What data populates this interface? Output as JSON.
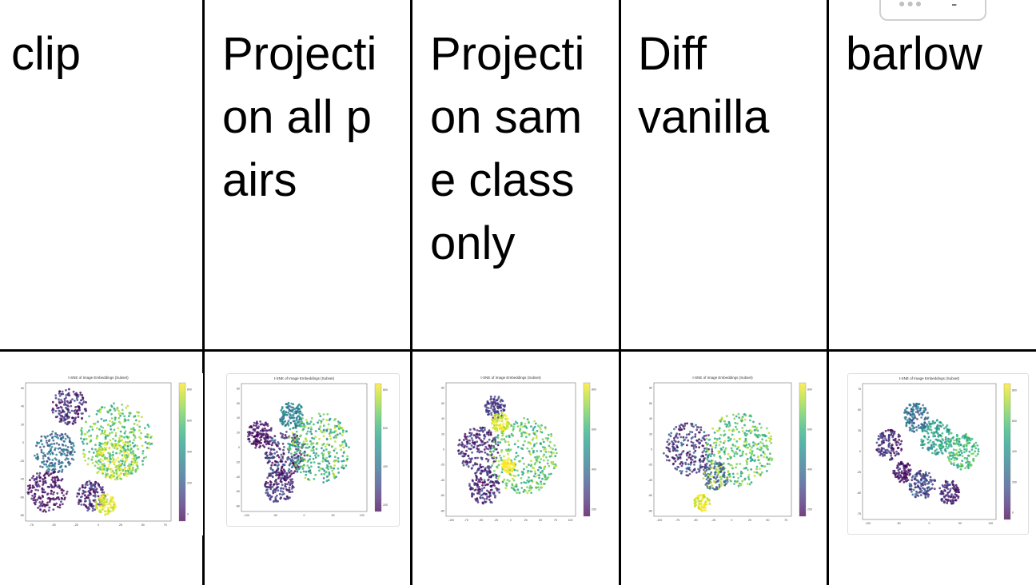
{
  "table": {
    "columns": [
      {
        "label": "clip"
      },
      {
        "label": "Projection all pairs"
      },
      {
        "label": "Projection same class only"
      },
      {
        "label": "Diff vanilla"
      },
      {
        "label": "barlow"
      }
    ]
  },
  "chart_data": [
    {
      "type": "scatter",
      "title": "t-SNE of Image Embeddings (Subset)",
      "xticks": [
        -75,
        -50,
        -25,
        0,
        25,
        50,
        75
      ],
      "yticks": [
        -80,
        -60,
        -40,
        -20,
        0,
        20,
        40,
        60
      ],
      "colorbar_ticks": [
        0,
        200,
        400,
        600,
        800
      ],
      "colormap": "viridis"
    },
    {
      "type": "scatter",
      "title": "t-SNE of Image Embeddings (Subset)",
      "xticks": [
        -100,
        -50,
        0,
        50,
        100
      ],
      "yticks": [
        -80,
        -60,
        -40,
        -20,
        0,
        20,
        40,
        60,
        80
      ],
      "colorbar_ticks": [
        200,
        400,
        600,
        800
      ],
      "colormap": "viridis"
    },
    {
      "type": "scatter",
      "title": "t-SNE of Image Embeddings (Subset)",
      "xticks": [
        -100,
        -75,
        -50,
        -25,
        0,
        25,
        50,
        75,
        100
      ],
      "yticks": [
        -80,
        -60,
        -40,
        -20,
        0,
        20,
        40,
        60,
        80
      ],
      "colorbar_ticks": [
        200,
        400,
        600,
        800
      ],
      "colormap": "viridis"
    },
    {
      "type": "scatter",
      "title": "t-SNE of Image Embeddings (Subset)",
      "xticks": [
        -100,
        -75,
        -50,
        -25,
        0,
        25,
        50,
        75
      ],
      "yticks": [
        -80,
        -60,
        -40,
        -20,
        0,
        20,
        40,
        60,
        80
      ],
      "colorbar_ticks": [
        200,
        400,
        600,
        800
      ],
      "colormap": "viridis"
    },
    {
      "type": "scatter",
      "title": "t-SNE of Image Embeddings (Subset)",
      "xticks": [
        -100,
        -50,
        0,
        50,
        100
      ],
      "yticks": [
        -75,
        -50,
        -25,
        0,
        25,
        50,
        75
      ],
      "colorbar_ticks": [
        0,
        200,
        400,
        600,
        800
      ],
      "colormap": "viridis"
    }
  ],
  "colors": {
    "viridis": [
      "#440154",
      "#482878",
      "#3e4989",
      "#31688e",
      "#26828e",
      "#1f9e89",
      "#35b779",
      "#6ece58",
      "#b5de2b",
      "#fde725"
    ]
  }
}
